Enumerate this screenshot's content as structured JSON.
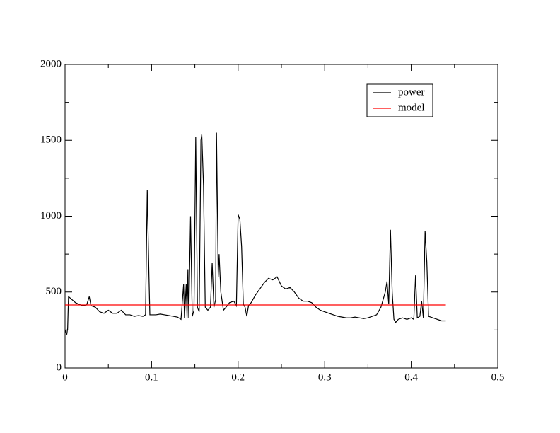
{
  "chart_data": {
    "type": "line",
    "series": [
      {
        "name": "power",
        "color": "#000000",
        "x": [
          0.0,
          0.002,
          0.003,
          0.004,
          0.008,
          0.012,
          0.016,
          0.02,
          0.025,
          0.028,
          0.03,
          0.035,
          0.04,
          0.045,
          0.05,
          0.055,
          0.06,
          0.065,
          0.07,
          0.075,
          0.08,
          0.085,
          0.09,
          0.093,
          0.095,
          0.097,
          0.098,
          0.1,
          0.105,
          0.11,
          0.115,
          0.12,
          0.125,
          0.13,
          0.134,
          0.137,
          0.138,
          0.14,
          0.141,
          0.142,
          0.143,
          0.145,
          0.147,
          0.149,
          0.151,
          0.153,
          0.155,
          0.157,
          0.158,
          0.16,
          0.162,
          0.165,
          0.168,
          0.17,
          0.172,
          0.174,
          0.175,
          0.177,
          0.178,
          0.18,
          0.183,
          0.186,
          0.19,
          0.195,
          0.198,
          0.2,
          0.202,
          0.204,
          0.206,
          0.208,
          0.21,
          0.212,
          0.215,
          0.22,
          0.225,
          0.23,
          0.235,
          0.24,
          0.245,
          0.25,
          0.255,
          0.26,
          0.265,
          0.27,
          0.275,
          0.28,
          0.285,
          0.29,
          0.295,
          0.3,
          0.305,
          0.31,
          0.315,
          0.32,
          0.325,
          0.33,
          0.335,
          0.34,
          0.345,
          0.35,
          0.355,
          0.36,
          0.365,
          0.37,
          0.372,
          0.374,
          0.376,
          0.378,
          0.38,
          0.382,
          0.385,
          0.39,
          0.395,
          0.4,
          0.403,
          0.405,
          0.407,
          0.41,
          0.412,
          0.414,
          0.416,
          0.418,
          0.42,
          0.425,
          0.43,
          0.435,
          0.44
        ],
        "values": [
          250,
          220,
          260,
          470,
          450,
          430,
          420,
          410,
          415,
          470,
          410,
          400,
          370,
          360,
          380,
          360,
          360,
          380,
          350,
          350,
          340,
          345,
          340,
          350,
          1170,
          600,
          350,
          350,
          350,
          355,
          350,
          345,
          340,
          335,
          320,
          550,
          330,
          550,
          330,
          650,
          330,
          1000,
          340,
          380,
          1520,
          400,
          370,
          1500,
          1540,
          1200,
          400,
          380,
          400,
          690,
          400,
          450,
          1550,
          600,
          750,
          500,
          380,
          400,
          430,
          440,
          410,
          1010,
          980,
          800,
          420,
          400,
          340,
          410,
          430,
          480,
          520,
          560,
          590,
          580,
          600,
          540,
          520,
          530,
          500,
          460,
          440,
          440,
          430,
          400,
          380,
          370,
          360,
          350,
          340,
          335,
          330,
          330,
          335,
          330,
          325,
          330,
          340,
          350,
          400,
          500,
          570,
          420,
          910,
          500,
          320,
          300,
          320,
          330,
          320,
          330,
          320,
          610,
          330,
          340,
          440,
          330,
          900,
          700,
          340,
          330,
          320,
          310,
          310
        ]
      },
      {
        "name": "model",
        "color": "#ff0000",
        "x": [
          0,
          0.44
        ],
        "values": [
          415,
          415
        ]
      }
    ],
    "xlim": [
      0,
      0.5
    ],
    "xticks": [
      0,
      0.1,
      0.2,
      0.3,
      0.4,
      0.5
    ],
    "ylim": [
      0,
      2000
    ],
    "yticks": [
      0,
      500,
      1000,
      1500,
      2000
    ]
  }
}
